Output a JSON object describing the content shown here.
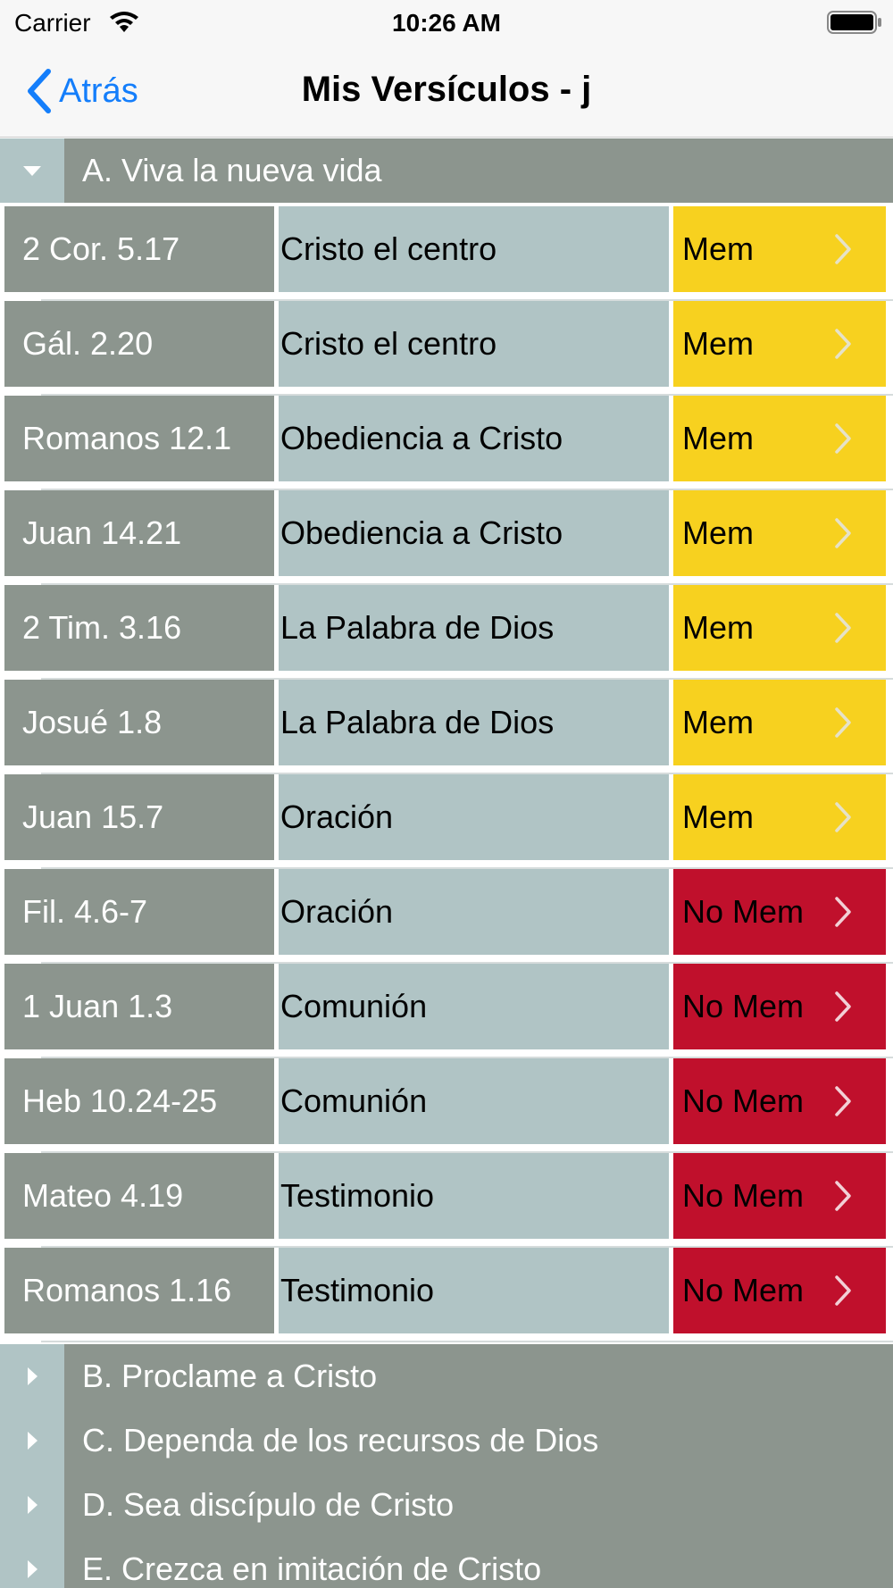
{
  "status_bar": {
    "carrier": "Carrier",
    "time": "10:26 AM"
  },
  "nav": {
    "back_label": "Atrás",
    "title": "Mis Versículos - j"
  },
  "colors": {
    "mem": "#f7d11f",
    "no_mem": "#c0102c",
    "ref_bg": "#8c958e",
    "topic_bg": "#b0c4c5",
    "accent": "#147efb"
  },
  "sections": [
    {
      "title": "A. Viva la nueva vida",
      "expanded": true,
      "rows": [
        {
          "reference": "2 Cor. 5.17",
          "topic": "Cristo el centro",
          "status": "Mem"
        },
        {
          "reference": "Gál. 2.20",
          "topic": "Cristo el centro",
          "status": "Mem"
        },
        {
          "reference": "Romanos 12.1",
          "topic": "Obediencia a Cristo",
          "status": "Mem"
        },
        {
          "reference": "Juan 14.21",
          "topic": "Obediencia a Cristo",
          "status": "Mem"
        },
        {
          "reference": "2 Tim. 3.16",
          "topic": "La Palabra de Dios",
          "status": "Mem"
        },
        {
          "reference": "Josué 1.8",
          "topic": "La Palabra de Dios",
          "status": "Mem"
        },
        {
          "reference": "Juan 15.7",
          "topic": "Oración",
          "status": "Mem"
        },
        {
          "reference": "Fil. 4.6-7",
          "topic": "Oración",
          "status": "No Mem"
        },
        {
          "reference": "1 Juan 1.3",
          "topic": "Comunión",
          "status": "No Mem"
        },
        {
          "reference": "Heb 10.24-25",
          "topic": "Comunión",
          "status": "No Mem"
        },
        {
          "reference": "Mateo 4.19",
          "topic": "Testimonio",
          "status": "No Mem"
        },
        {
          "reference": "Romanos 1.16",
          "topic": "Testimonio",
          "status": "No Mem"
        }
      ]
    },
    {
      "title": "B. Proclame a Cristo",
      "expanded": false
    },
    {
      "title": "C. Dependa de los recursos de Dios",
      "expanded": false
    },
    {
      "title": "D. Sea discípulo de Cristo",
      "expanded": false
    },
    {
      "title": "E. Crezca en imitación de Cristo",
      "expanded": false
    }
  ]
}
